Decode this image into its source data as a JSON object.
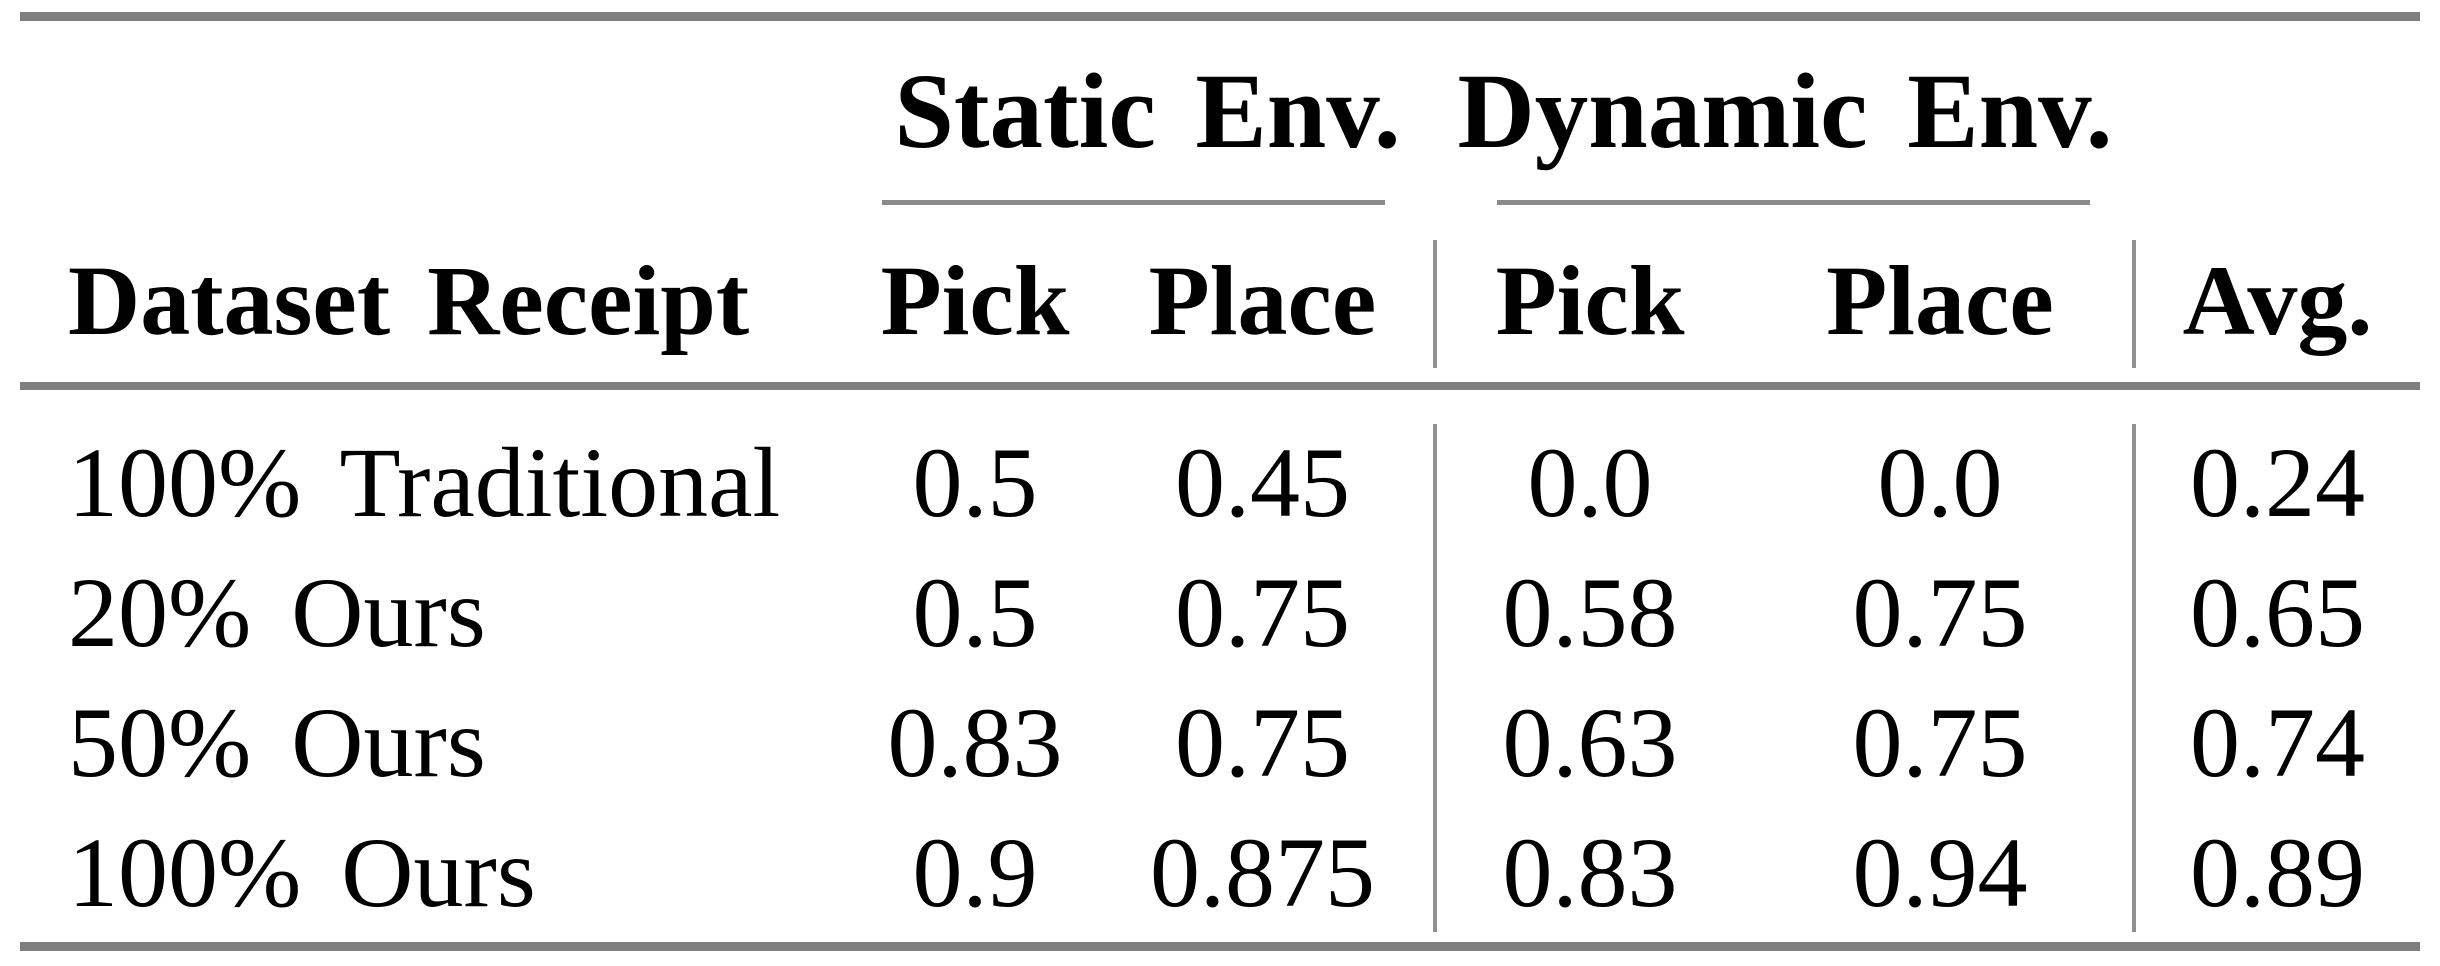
{
  "table": {
    "row_header": "Dataset Receipt",
    "avg_header": "Avg.",
    "col_groups": [
      {
        "label": "Static Env.",
        "columns": [
          "Pick",
          "Place"
        ]
      },
      {
        "label": "Dynamic Env.",
        "columns": [
          "Pick",
          "Place"
        ]
      }
    ],
    "rows": [
      {
        "label": "100% Traditional",
        "values": [
          "0.5",
          "0.45",
          "0.0",
          "0.0",
          "0.24"
        ]
      },
      {
        "label": "20% Ours",
        "values": [
          "0.5",
          "0.75",
          "0.58",
          "0.75",
          "0.65"
        ]
      },
      {
        "label": "50% Ours",
        "values": [
          "0.83",
          "0.75",
          "0.63",
          "0.75",
          "0.74"
        ]
      },
      {
        "label": "100% Ours",
        "values": [
          "0.9",
          "0.875",
          "0.83",
          "0.94",
          "0.89"
        ]
      }
    ]
  },
  "colors": {
    "text": "#000000",
    "thick_rule": "#7f7f7f",
    "cmidrule": "#8a8a8a",
    "vline": "#909090",
    "background": "#ffffff"
  },
  "chart_data": {
    "type": "table",
    "title": "",
    "columns": [
      "Dataset Receipt",
      "Static Env. Pick",
      "Static Env. Place",
      "Dynamic Env. Pick",
      "Dynamic Env. Place",
      "Avg."
    ],
    "rows": [
      [
        "100% Traditional",
        0.5,
        0.45,
        0.0,
        0.0,
        0.24
      ],
      [
        "20% Ours",
        0.5,
        0.75,
        0.58,
        0.75,
        0.65
      ],
      [
        "50% Ours",
        0.83,
        0.75,
        0.63,
        0.75,
        0.74
      ],
      [
        "100% Ours",
        0.9,
        0.875,
        0.83,
        0.94,
        0.89
      ]
    ]
  }
}
